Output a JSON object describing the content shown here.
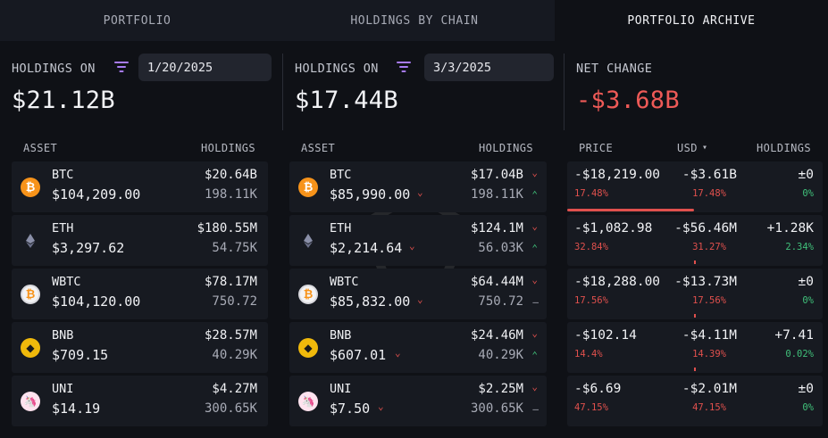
{
  "tabs": [
    {
      "label": "PORTFOLIO"
    },
    {
      "label": "HOLDINGS BY CHAIN"
    },
    {
      "label": "PORTFOLIO ARCHIVE"
    }
  ],
  "left": {
    "label": "HOLDINGS ON",
    "date": "1/20/2025",
    "total": "$21.12B",
    "col_asset": "ASSET",
    "col_holdings": "HOLDINGS",
    "rows": [
      {
        "symbol": "BTC",
        "price": "$104,209.00",
        "value": "$20.64B",
        "qty": "198.11K",
        "icon": "bitcoin-icon"
      },
      {
        "symbol": "ETH",
        "price": "$3,297.62",
        "value": "$180.55M",
        "qty": "54.75K",
        "icon": "ethereum-icon"
      },
      {
        "symbol": "WBTC",
        "price": "$104,120.00",
        "value": "$78.17M",
        "qty": "750.72",
        "icon": "wbtc-icon"
      },
      {
        "symbol": "BNB",
        "price": "$709.15",
        "value": "$28.57M",
        "qty": "40.29K",
        "icon": "bnb-icon"
      },
      {
        "symbol": "UNI",
        "price": "$14.19",
        "value": "$4.27M",
        "qty": "300.65K",
        "icon": "uniswap-icon"
      }
    ]
  },
  "right": {
    "label": "HOLDINGS ON",
    "date": "3/3/2025",
    "total": "$17.44B",
    "col_asset": "ASSET",
    "col_holdings": "HOLDINGS",
    "rows": [
      {
        "symbol": "BTC",
        "price": "$85,990.00",
        "value": "$17.04B",
        "qty": "198.11K",
        "qty_trend": "up"
      },
      {
        "symbol": "ETH",
        "price": "$2,214.64",
        "value": "$124.1M",
        "qty": "56.03K",
        "qty_trend": "up"
      },
      {
        "symbol": "WBTC",
        "price": "$85,832.00",
        "value": "$64.44M",
        "qty": "750.72",
        "qty_trend": "flat"
      },
      {
        "symbol": "BNB",
        "price": "$607.01",
        "value": "$24.46M",
        "qty": "40.29K",
        "qty_trend": "up"
      },
      {
        "symbol": "UNI",
        "price": "$7.50",
        "value": "$2.25M",
        "qty": "300.65K",
        "qty_trend": "flat"
      }
    ]
  },
  "change": {
    "label": "NET CHANGE",
    "total": "-$3.68B",
    "col_price": "PRICE",
    "col_usd": "USD",
    "col_holdings": "HOLDINGS",
    "rows": [
      {
        "price": "-$18,219.00",
        "price_pct": "17.48%",
        "usd": "-$3.61B",
        "usd_pct": "17.48%",
        "holdings": "±0",
        "holdings_pct": "0%"
      },
      {
        "price": "-$1,082.98",
        "price_pct": "32.84%",
        "usd": "-$56.46M",
        "usd_pct": "31.27%",
        "holdings": "+1.28K",
        "holdings_pct": "2.34%"
      },
      {
        "price": "-$18,288.00",
        "price_pct": "17.56%",
        "usd": "-$13.73M",
        "usd_pct": "17.56%",
        "holdings": "±0",
        "holdings_pct": "0%"
      },
      {
        "price": "-$102.14",
        "price_pct": "14.4%",
        "usd": "-$4.11M",
        "usd_pct": "14.39%",
        "holdings": "+7.41",
        "holdings_pct": "0.02%"
      },
      {
        "price": "-$6.69",
        "price_pct": "47.15%",
        "usd": "-$2.01M",
        "usd_pct": "47.15%",
        "holdings": "±0",
        "holdings_pct": "0%"
      }
    ]
  },
  "glyphs": {
    "down": "⌄",
    "up": "⌃",
    "flat": "—",
    "sort": "▾"
  },
  "colors": {
    "accent": "#a77bf2",
    "negative": "#ee5a57",
    "positive": "#40c07a",
    "btc": "#f7931a",
    "bnb": "#f0b90b",
    "uni": "#ff007a"
  }
}
